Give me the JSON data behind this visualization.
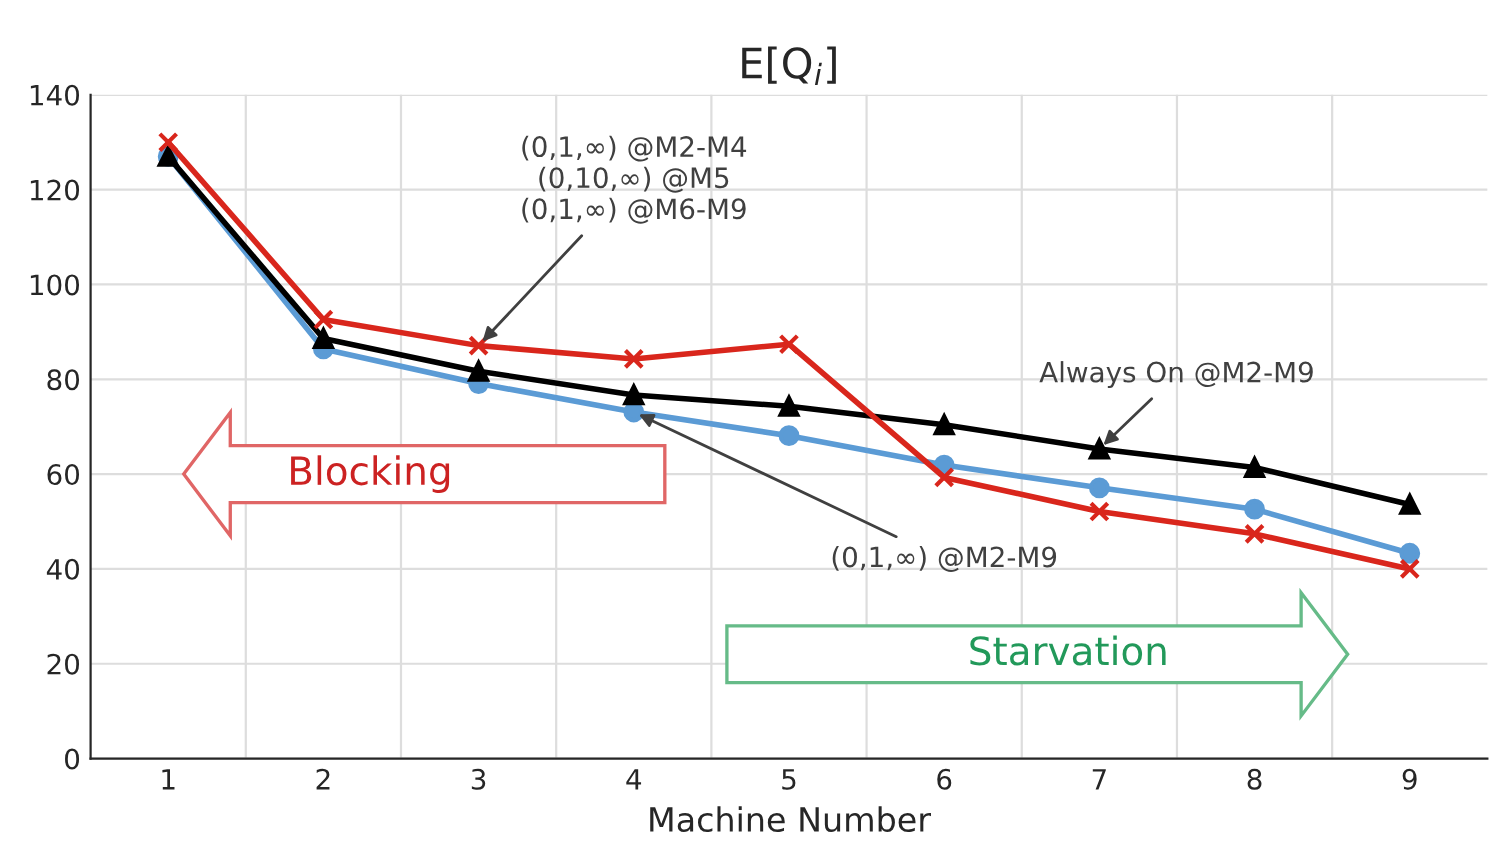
{
  "chart_data": {
    "type": "line",
    "title": "E[Q$_{i}$]",
    "xlabel": "Machine Number",
    "categories": [
      "1",
      "2",
      "3",
      "4",
      "5",
      "6",
      "7",
      "8",
      "9"
    ],
    "series": [
      {
        "color": "#d9261c",
        "marker": "cross",
        "values": [
          130,
          92.6,
          87.1,
          84.3,
          87.4,
          59.3,
          52.1,
          47.4,
          40
        ]
      },
      {
        "color": "#000000",
        "marker": "triangle",
        "values": [
          127,
          88.6,
          81.7,
          76.7,
          74.3,
          70.4,
          65.3,
          61.4,
          53.6
        ]
      },
      {
        "color": "#5b9bd5",
        "marker": "circle",
        "values": [
          127,
          86.4,
          79.1,
          73.1,
          68.1,
          61.9,
          57.1,
          52.6,
          43.3
        ]
      }
    ],
    "ylim": [
      0,
      140
    ],
    "yticks": [
      0,
      20,
      40,
      60,
      80,
      100,
      120,
      140
    ],
    "grid": true,
    "legend": false,
    "annotations": [
      {
        "text": "(0,1,∞) @M2-M4\n(0,10,∞) @M5\n(0,1,∞) @M6-M9",
        "x": "3",
        "y": 87.1
      },
      {
        "text": "Always On @M2-M9",
        "x": "7",
        "y": 65.3
      },
      {
        "text": "(0,1,∞) @M2-M9",
        "x": "4",
        "y": 73.1
      },
      "Blocking",
      "Starvation"
    ]
  }
}
